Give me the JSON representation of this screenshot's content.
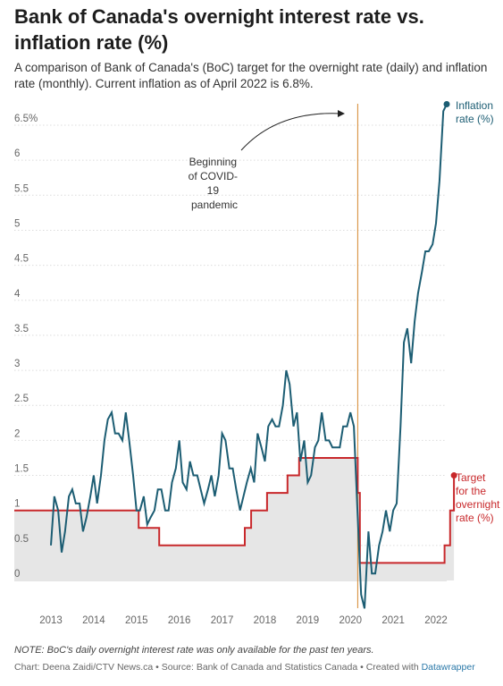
{
  "title": "Bank of Canada's overnight interest rate vs. inflation rate (%)",
  "subtitle": "A comparison of Bank of Canada's (BoC) target for the overnight rate (daily) and inflation rate (monthly). Current inflation as of April 2022 is 6.8%.",
  "note": "NOTE: BoC's daily overnight interest rate was only available for the past ten years.",
  "source": {
    "prefix": "Chart: Deena Zaidi/CTV News.ca • Source: Bank of Canada and Statistics Canada • Created with ",
    "link": "Datawrapper"
  },
  "colors": {
    "inflation": "#1c5d73",
    "overnight": "#c8282b",
    "area_fill": "#e6e6e6",
    "covid_line": "#d6862d",
    "grid": "#dcdcdc"
  },
  "chart_data": {
    "type": "line",
    "title": "Bank of Canada's overnight interest rate vs. inflation rate (%)",
    "x_axis": {
      "range": [
        2013.0,
        2022.5
      ],
      "ticks": [
        2013,
        2014,
        2015,
        2016,
        2017,
        2018,
        2019,
        2020,
        2021,
        2022
      ],
      "tick_labels": [
        "2013",
        "2014",
        "2015",
        "2016",
        "2017",
        "2018",
        "2019",
        "2020",
        "2021",
        "2022"
      ]
    },
    "y_axis": {
      "range": [
        -0.4,
        6.9
      ],
      "ticks": [
        0,
        0.5,
        1,
        1.5,
        2,
        2.5,
        3,
        3.5,
        4,
        4.5,
        5,
        5.5,
        6,
        6.5
      ],
      "tick_labels": [
        "0",
        "0.5",
        "1",
        "1.5",
        "2",
        "2.5",
        "3",
        "3.5",
        "4",
        "4.5",
        "5",
        "5.5",
        "6",
        "6.5%"
      ]
    },
    "grid": true,
    "series": [
      {
        "name": "Inflation rate (%)",
        "label": "Inflation rate (%)",
        "color": "#1c5d73",
        "points": [
          [
            2013.0,
            0.5
          ],
          [
            2013.08,
            1.2
          ],
          [
            2013.17,
            1.0
          ],
          [
            2013.25,
            0.4
          ],
          [
            2013.33,
            0.7
          ],
          [
            2013.42,
            1.2
          ],
          [
            2013.5,
            1.3
          ],
          [
            2013.58,
            1.1
          ],
          [
            2013.67,
            1.1
          ],
          [
            2013.75,
            0.7
          ],
          [
            2013.83,
            0.9
          ],
          [
            2013.92,
            1.2
          ],
          [
            2014.0,
            1.5
          ],
          [
            2014.08,
            1.1
          ],
          [
            2014.17,
            1.5
          ],
          [
            2014.25,
            2.0
          ],
          [
            2014.33,
            2.3
          ],
          [
            2014.42,
            2.4
          ],
          [
            2014.5,
            2.1
          ],
          [
            2014.58,
            2.1
          ],
          [
            2014.67,
            2.0
          ],
          [
            2014.75,
            2.4
          ],
          [
            2014.83,
            2.0
          ],
          [
            2014.92,
            1.5
          ],
          [
            2015.0,
            1.0
          ],
          [
            2015.08,
            1.0
          ],
          [
            2015.17,
            1.2
          ],
          [
            2015.25,
            0.8
          ],
          [
            2015.33,
            0.9
          ],
          [
            2015.42,
            1.0
          ],
          [
            2015.5,
            1.3
          ],
          [
            2015.58,
            1.3
          ],
          [
            2015.67,
            1.0
          ],
          [
            2015.75,
            1.0
          ],
          [
            2015.83,
            1.4
          ],
          [
            2015.92,
            1.6
          ],
          [
            2016.0,
            2.0
          ],
          [
            2016.08,
            1.4
          ],
          [
            2016.17,
            1.3
          ],
          [
            2016.25,
            1.7
          ],
          [
            2016.33,
            1.5
          ],
          [
            2016.42,
            1.5
          ],
          [
            2016.5,
            1.3
          ],
          [
            2016.58,
            1.1
          ],
          [
            2016.67,
            1.3
          ],
          [
            2016.75,
            1.5
          ],
          [
            2016.83,
            1.2
          ],
          [
            2016.92,
            1.5
          ],
          [
            2017.0,
            2.1
          ],
          [
            2017.08,
            2.0
          ],
          [
            2017.17,
            1.6
          ],
          [
            2017.25,
            1.6
          ],
          [
            2017.33,
            1.3
          ],
          [
            2017.42,
            1.0
          ],
          [
            2017.5,
            1.2
          ],
          [
            2017.58,
            1.4
          ],
          [
            2017.67,
            1.6
          ],
          [
            2017.75,
            1.4
          ],
          [
            2017.83,
            2.1
          ],
          [
            2017.92,
            1.9
          ],
          [
            2018.0,
            1.7
          ],
          [
            2018.08,
            2.2
          ],
          [
            2018.17,
            2.3
          ],
          [
            2018.25,
            2.2
          ],
          [
            2018.33,
            2.2
          ],
          [
            2018.42,
            2.5
          ],
          [
            2018.5,
            3.0
          ],
          [
            2018.58,
            2.8
          ],
          [
            2018.67,
            2.2
          ],
          [
            2018.75,
            2.4
          ],
          [
            2018.83,
            1.7
          ],
          [
            2018.92,
            2.0
          ],
          [
            2019.0,
            1.4
          ],
          [
            2019.08,
            1.5
          ],
          [
            2019.17,
            1.9
          ],
          [
            2019.25,
            2.0
          ],
          [
            2019.33,
            2.4
          ],
          [
            2019.42,
            2.0
          ],
          [
            2019.5,
            2.0
          ],
          [
            2019.58,
            1.9
          ],
          [
            2019.67,
            1.9
          ],
          [
            2019.75,
            1.9
          ],
          [
            2019.83,
            2.2
          ],
          [
            2019.92,
            2.2
          ],
          [
            2020.0,
            2.4
          ],
          [
            2020.08,
            2.2
          ],
          [
            2020.17,
            0.9
          ],
          [
            2020.25,
            -0.2
          ],
          [
            2020.33,
            -0.4
          ],
          [
            2020.42,
            0.7
          ],
          [
            2020.5,
            0.1
          ],
          [
            2020.58,
            0.1
          ],
          [
            2020.67,
            0.5
          ],
          [
            2020.75,
            0.7
          ],
          [
            2020.83,
            1.0
          ],
          [
            2020.92,
            0.7
          ],
          [
            2021.0,
            1.0
          ],
          [
            2021.08,
            1.1
          ],
          [
            2021.17,
            2.2
          ],
          [
            2021.25,
            3.4
          ],
          [
            2021.33,
            3.6
          ],
          [
            2021.42,
            3.1
          ],
          [
            2021.5,
            3.7
          ],
          [
            2021.58,
            4.1
          ],
          [
            2021.67,
            4.4
          ],
          [
            2021.75,
            4.7
          ],
          [
            2021.83,
            4.7
          ],
          [
            2021.92,
            4.8
          ],
          [
            2022.0,
            5.1
          ],
          [
            2022.08,
            5.7
          ],
          [
            2022.17,
            6.7
          ],
          [
            2022.25,
            6.8
          ]
        ]
      },
      {
        "name": "Target for the overnight rate (%)",
        "label": "Target for the overnight rate (%)",
        "color": "#c8282b",
        "points": [
          [
            2013.0,
            1.0
          ],
          [
            2015.05,
            1.0
          ],
          [
            2015.05,
            0.75
          ],
          [
            2015.53,
            0.75
          ],
          [
            2015.53,
            0.5
          ],
          [
            2017.53,
            0.5
          ],
          [
            2017.53,
            0.75
          ],
          [
            2017.68,
            0.75
          ],
          [
            2017.68,
            1.0
          ],
          [
            2018.05,
            1.0
          ],
          [
            2018.05,
            1.25
          ],
          [
            2018.53,
            1.25
          ],
          [
            2018.53,
            1.5
          ],
          [
            2018.8,
            1.5
          ],
          [
            2018.8,
            1.75
          ],
          [
            2020.17,
            1.75
          ],
          [
            2020.17,
            1.25
          ],
          [
            2020.22,
            1.25
          ],
          [
            2020.22,
            0.25
          ],
          [
            2022.2,
            0.25
          ],
          [
            2022.2,
            0.5
          ],
          [
            2022.33,
            0.5
          ],
          [
            2022.33,
            1.0
          ],
          [
            2022.42,
            1.0
          ],
          [
            2022.42,
            1.5
          ]
        ]
      }
    ],
    "annotations": [
      {
        "text": "Beginning of COVID-19 pandemic",
        "x": 2020.17
      }
    ]
  },
  "annotation_lines": [
    "Beginning",
    "of COVID-",
    "19",
    "pandemic"
  ],
  "legend_lines": {
    "inflation": [
      "Inflation",
      "rate (%)"
    ],
    "overnight": [
      "Target",
      "for the",
      "overnight",
      "rate (%)"
    ]
  }
}
